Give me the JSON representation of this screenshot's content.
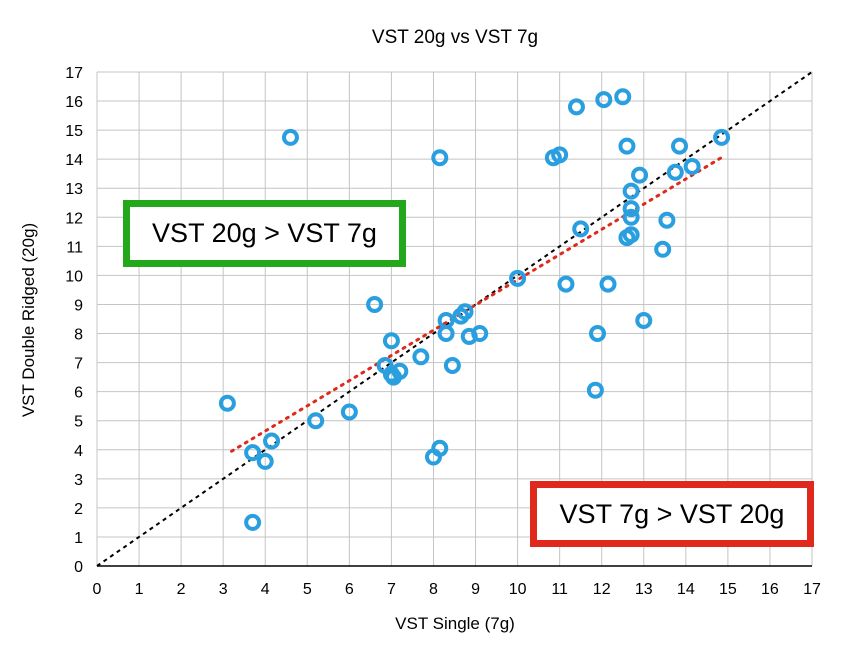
{
  "chart_data": {
    "type": "scatter",
    "title": "VST 20g vs VST 7g",
    "xlabel": "VST Single (7g)",
    "ylabel": "VST Double Ridged (20g)",
    "xlim": [
      0,
      17
    ],
    "ylim": [
      0,
      17
    ],
    "xticks": [
      "0",
      "1",
      "2",
      "3",
      "4",
      "5",
      "6",
      "7",
      "8",
      "9",
      "10",
      "11",
      "12",
      "13",
      "14",
      "15",
      "16",
      "17"
    ],
    "yticks": [
      "0",
      "1",
      "2",
      "3",
      "4",
      "5",
      "6",
      "7",
      "8",
      "9",
      "10",
      "11",
      "12",
      "13",
      "14",
      "15",
      "16",
      "17"
    ],
    "grid": true,
    "marker_color": "#2a9fe0",
    "points": [
      {
        "x": 3.1,
        "y": 5.6
      },
      {
        "x": 3.7,
        "y": 3.9
      },
      {
        "x": 3.7,
        "y": 1.5
      },
      {
        "x": 4.0,
        "y": 3.6
      },
      {
        "x": 4.15,
        "y": 4.3
      },
      {
        "x": 4.6,
        "y": 14.75
      },
      {
        "x": 5.2,
        "y": 5.0
      },
      {
        "x": 6.0,
        "y": 5.3
      },
      {
        "x": 6.6,
        "y": 9.0
      },
      {
        "x": 6.85,
        "y": 6.9
      },
      {
        "x": 7.0,
        "y": 6.6
      },
      {
        "x": 7.05,
        "y": 6.5
      },
      {
        "x": 7.0,
        "y": 7.75
      },
      {
        "x": 7.2,
        "y": 6.7
      },
      {
        "x": 7.7,
        "y": 7.2
      },
      {
        "x": 8.0,
        "y": 3.75
      },
      {
        "x": 8.15,
        "y": 4.05
      },
      {
        "x": 8.15,
        "y": 14.05
      },
      {
        "x": 8.3,
        "y": 8.0
      },
      {
        "x": 8.3,
        "y": 8.45
      },
      {
        "x": 8.45,
        "y": 6.9
      },
      {
        "x": 8.65,
        "y": 8.6
      },
      {
        "x": 8.75,
        "y": 8.75
      },
      {
        "x": 8.85,
        "y": 7.9
      },
      {
        "x": 9.1,
        "y": 8.0
      },
      {
        "x": 10.0,
        "y": 9.9
      },
      {
        "x": 10.85,
        "y": 14.05
      },
      {
        "x": 11.0,
        "y": 14.15
      },
      {
        "x": 11.15,
        "y": 9.7
      },
      {
        "x": 11.4,
        "y": 15.8
      },
      {
        "x": 11.5,
        "y": 11.6
      },
      {
        "x": 11.85,
        "y": 6.05
      },
      {
        "x": 11.9,
        "y": 8.0
      },
      {
        "x": 12.05,
        "y": 16.05
      },
      {
        "x": 12.15,
        "y": 9.7
      },
      {
        "x": 12.5,
        "y": 16.15
      },
      {
        "x": 12.6,
        "y": 14.45
      },
      {
        "x": 12.6,
        "y": 11.3
      },
      {
        "x": 12.7,
        "y": 11.4
      },
      {
        "x": 12.7,
        "y": 12.0
      },
      {
        "x": 12.7,
        "y": 12.3
      },
      {
        "x": 12.7,
        "y": 12.9
      },
      {
        "x": 12.9,
        "y": 13.45
      },
      {
        "x": 13.0,
        "y": 8.45
      },
      {
        "x": 13.45,
        "y": 10.9
      },
      {
        "x": 13.55,
        "y": 11.9
      },
      {
        "x": 13.75,
        "y": 13.55
      },
      {
        "x": 13.85,
        "y": 14.45
      },
      {
        "x": 14.15,
        "y": 13.75
      },
      {
        "x": 14.85,
        "y": 14.75
      }
    ],
    "reference_line": {
      "from": [
        0,
        0
      ],
      "to": [
        17,
        17
      ],
      "color": "#000000",
      "style": "dashed"
    },
    "trend_line": {
      "from": [
        3.2,
        3.95
      ],
      "to": [
        14.9,
        14.1
      ],
      "color": "#e0291c",
      "style": "dotted"
    }
  },
  "annotations": {
    "upper_left": {
      "text": "VST 20g > VST 7g",
      "border_color": "#22a81a"
    },
    "lower_right": {
      "text": "VST 7g > VST 20g",
      "border_color": "#e0291c"
    }
  }
}
